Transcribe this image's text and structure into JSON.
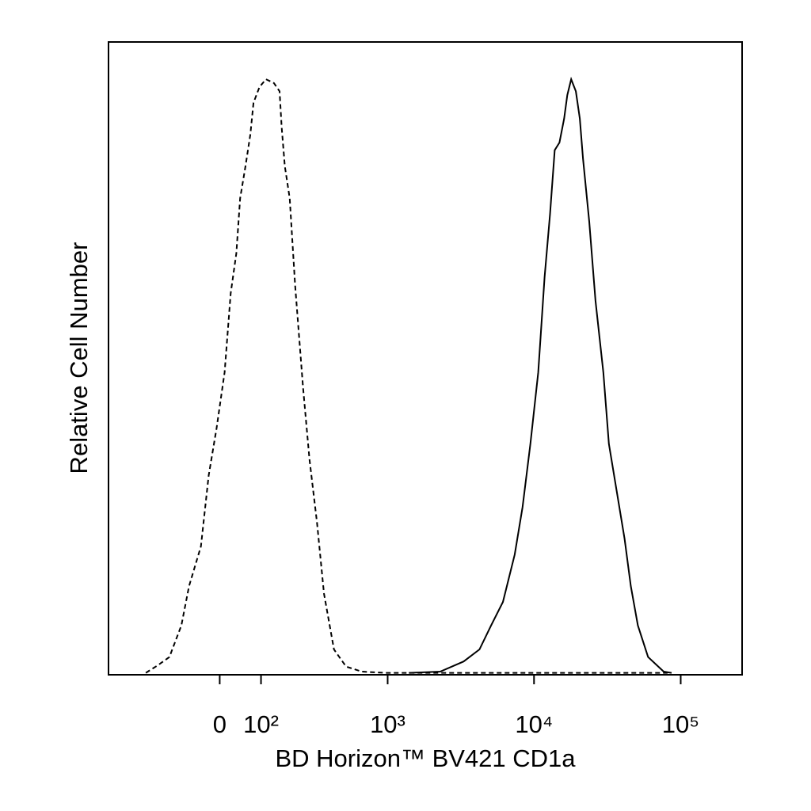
{
  "chart_data": {
    "type": "line",
    "x_label": "BD Horizon™ BV421 CD1a",
    "y_label": "Relative Cell Number",
    "x_scale": "biexponential",
    "xlim": [
      -400,
      262144
    ],
    "ylim": [
      0,
      100
    ],
    "xticks": [
      {
        "value": 0,
        "label": "0"
      },
      {
        "value": 100,
        "label": "10²"
      },
      {
        "value": 1000,
        "label": "10³"
      },
      {
        "value": 10000,
        "label": "10⁴"
      },
      {
        "value": 100000,
        "label": "10⁵"
      }
    ],
    "series": [
      {
        "color": "#000000",
        "dashed": true,
        "x": [
          -207,
          -163,
          -126,
          -92,
          -72,
          -43,
          -25,
          -7,
          11,
          25,
          38,
          47,
          60,
          72,
          80,
          96,
          114,
          138,
          156,
          163,
          174,
          192,
          213,
          247,
          277,
          316,
          356,
          421,
          513,
          661,
          963,
          2025,
          81400
        ],
        "values": [
          0.3,
          1.5,
          2.8,
          7.8,
          14.0,
          20.3,
          31.5,
          39.0,
          47.8,
          60.3,
          66.6,
          75.3,
          80.4,
          85.4,
          90.4,
          92.9,
          94.1,
          93.5,
          92.2,
          86.6,
          80.4,
          75.3,
          61.6,
          45.3,
          34.0,
          24.0,
          12.8,
          4.0,
          1.3,
          0.5,
          0.3,
          0.3,
          0.3
        ]
      },
      {
        "color": "#000000",
        "dashed": false,
        "x": [
          1398,
          2290,
          3312,
          4248,
          5098,
          6134,
          7387,
          8352,
          9446,
          10685,
          11808,
          12859,
          13838,
          14904,
          16042,
          16862,
          17928,
          19296,
          20534,
          21557,
          23789,
          26266,
          29693,
          32371,
          36634,
          41429,
          45706,
          51077,
          59947,
          76600,
          86700
        ],
        "values": [
          0.3,
          0.5,
          2.1,
          4.0,
          7.8,
          11.5,
          19.0,
          26.5,
          36.5,
          47.8,
          62.8,
          72.8,
          82.9,
          84.1,
          87.9,
          91.6,
          94.1,
          92.2,
          87.9,
          81.6,
          71.6,
          59.1,
          47.8,
          36.5,
          29.0,
          21.5,
          14.0,
          7.8,
          2.8,
          0.5,
          0.3
        ]
      }
    ]
  }
}
